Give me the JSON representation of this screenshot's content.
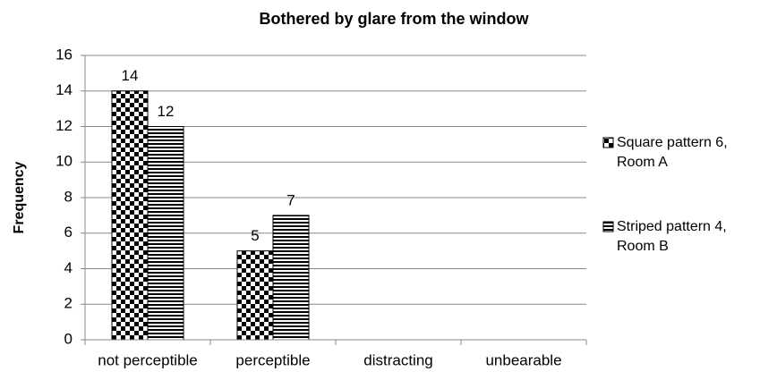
{
  "chart_data": {
    "type": "bar",
    "title": "Bothered by glare from the window",
    "y_label": "Frequency",
    "categories": [
      "not perceptible",
      "perceptible",
      "distracting",
      "unbearable"
    ],
    "series": [
      {
        "name": "Square pattern 6, Room A",
        "color": "#000000",
        "pattern": "checker",
        "values": [
          14,
          5,
          null,
          null
        ]
      },
      {
        "name": "Striped pattern 4, Room B",
        "color": "#000000",
        "pattern": "stripes",
        "values": [
          12,
          7,
          null,
          null
        ]
      }
    ],
    "ylim": [
      0,
      16
    ],
    "yticks": [
      0,
      2,
      4,
      6,
      8,
      10,
      12,
      14,
      16
    ],
    "grid": true,
    "legend": "right"
  }
}
